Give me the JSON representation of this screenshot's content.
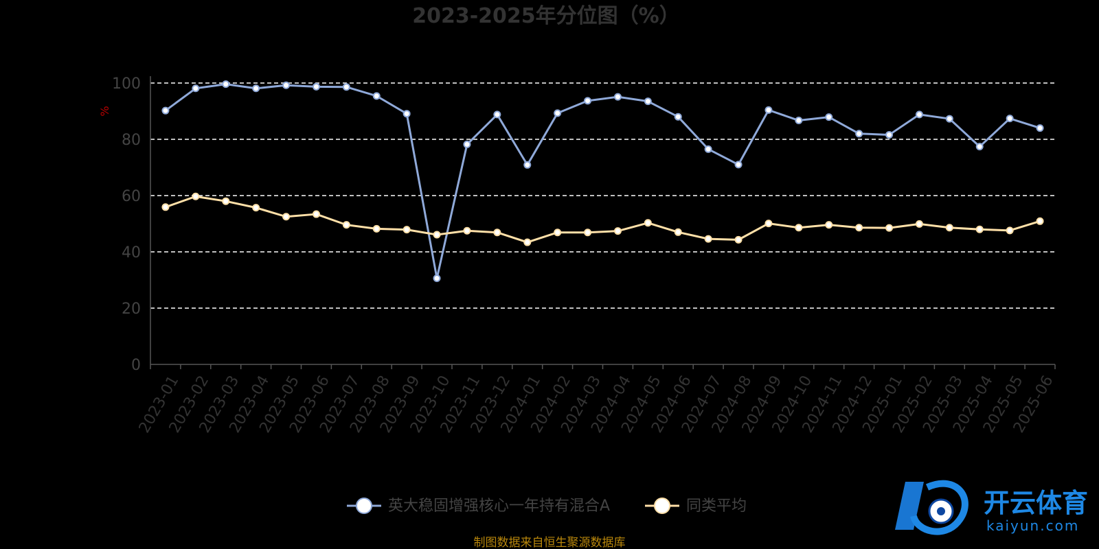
{
  "chart_data": {
    "type": "line",
    "title": "2023-2025年分位图（%）",
    "ylabel": "%",
    "ylim": [
      0,
      100
    ],
    "yticks": [
      0,
      20,
      40,
      60,
      80,
      100
    ],
    "grid": true,
    "legend_position": "bottom",
    "categories": [
      "2023-01",
      "2023-02",
      "2023-03",
      "2023-04",
      "2023-05",
      "2023-06",
      "2023-07",
      "2023-08",
      "2023-09",
      "2023-10",
      "2023-11",
      "2023-12",
      "2024-01",
      "2024-02",
      "2024-03",
      "2024-04",
      "2024-05",
      "2024-06",
      "2024-07",
      "2024-08",
      "2024-09",
      "2024-10",
      "2024-11",
      "2024-12",
      "2025-01",
      "2025-02",
      "2025-03",
      "2025-04",
      "2025-05",
      "2025-06"
    ],
    "series": [
      {
        "name": "英大稳固增强核心一年持有混合A",
        "color": "#8fa9d9",
        "values": [
          90.2,
          98.1,
          99.6,
          98.1,
          99.2,
          98.7,
          98.6,
          95.4,
          89.1,
          30.6,
          78.2,
          88.8,
          70.9,
          89.3,
          93.7,
          95.1,
          93.5,
          88.0,
          76.5,
          71.0,
          90.4,
          86.7,
          87.9,
          82.0,
          81.6,
          88.8,
          87.3,
          77.4,
          87.4,
          84.0
        ]
      },
      {
        "name": "同类平均",
        "color": "#ffe0a8",
        "values": [
          55.9,
          59.7,
          58.0,
          55.7,
          52.5,
          53.4,
          49.6,
          48.2,
          47.9,
          46.1,
          47.5,
          46.9,
          43.4,
          46.9,
          46.9,
          47.4,
          50.3,
          47.0,
          44.6,
          44.3,
          50.1,
          48.6,
          49.6,
          48.6,
          48.5,
          49.9,
          48.6,
          48.0,
          47.6,
          50.9
        ]
      }
    ]
  },
  "source_note": "制图数据来自恒生聚源数据库",
  "watermark": {
    "brand": "开云体育",
    "domain": "kaiyun.com"
  }
}
